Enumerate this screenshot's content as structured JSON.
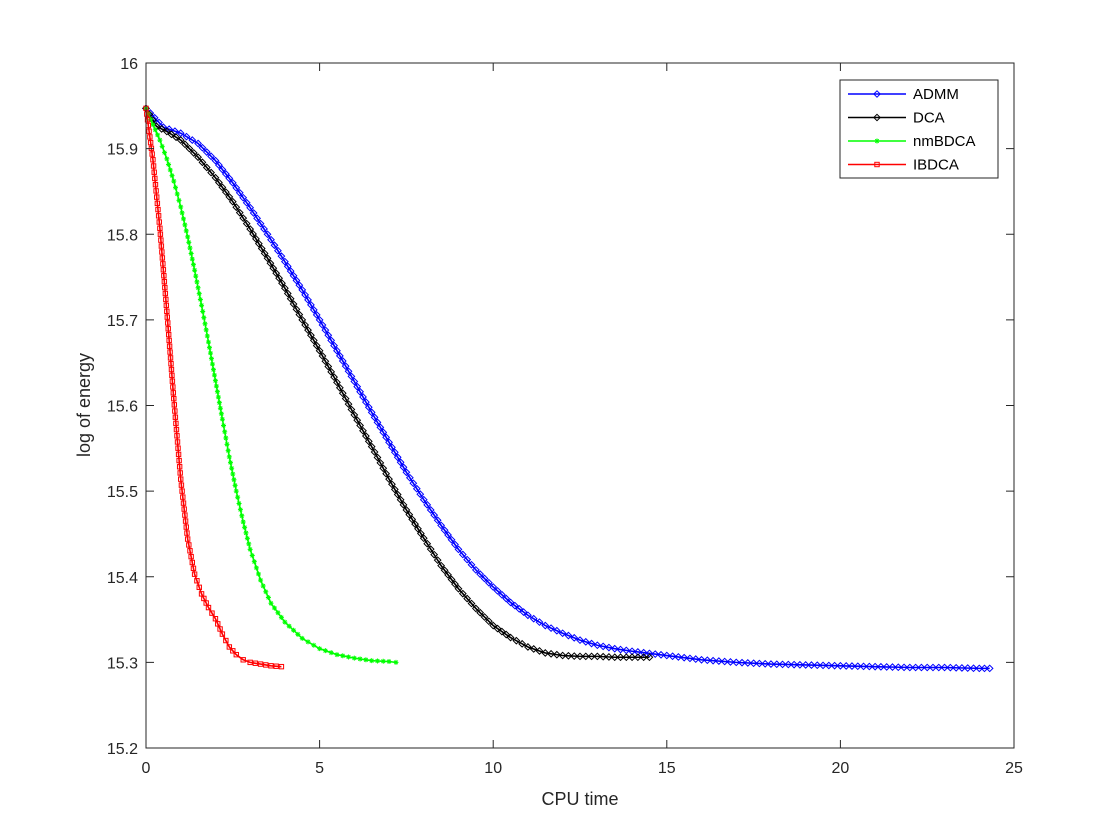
{
  "figure": {
    "background": "#ffffff"
  },
  "chart_data": {
    "type": "line",
    "title": "",
    "xlabel": "CPU time",
    "ylabel": "log of energy",
    "xlim": [
      0,
      25
    ],
    "ylim": [
      15.2,
      16
    ],
    "xticks": [
      "0",
      "5",
      "10",
      "15",
      "20",
      "25"
    ],
    "yticks": [
      "15.2",
      "15.3",
      "15.4",
      "15.5",
      "15.6",
      "15.7",
      "15.8",
      "15.9",
      "16"
    ],
    "grid": false,
    "legend_position": "top-right",
    "series": [
      {
        "name": "ADMM",
        "color": "#0000ff",
        "marker": "diamond",
        "x": [
          0,
          0.5,
          1.0,
          1.5,
          2.0,
          2.5,
          3.0,
          3.5,
          4.0,
          4.5,
          5.0,
          5.5,
          6.0,
          6.5,
          7.0,
          7.5,
          8.0,
          8.5,
          9.0,
          9.5,
          10.0,
          10.5,
          11.0,
          11.5,
          12.0,
          12.5,
          13.0,
          13.5,
          14.0,
          15.0,
          16.0,
          17.0,
          18.0,
          19.0,
          20.0,
          21.0,
          22.0,
          23.0,
          24.0,
          24.3
        ],
        "y": [
          15.947,
          15.925,
          15.918,
          15.906,
          15.886,
          15.86,
          15.831,
          15.8,
          15.768,
          15.735,
          15.7,
          15.664,
          15.628,
          15.592,
          15.557,
          15.522,
          15.49,
          15.46,
          15.432,
          15.408,
          15.388,
          15.37,
          15.355,
          15.343,
          15.334,
          15.326,
          15.32,
          15.316,
          15.313,
          15.308,
          15.303,
          15.3,
          15.298,
          15.297,
          15.296,
          15.295,
          15.294,
          15.294,
          15.293,
          15.293
        ]
      },
      {
        "name": "DCA",
        "color": "#000000",
        "marker": "diamond",
        "x": [
          0,
          0.3,
          0.6,
          1.0,
          1.5,
          2.0,
          2.5,
          3.0,
          3.5,
          4.0,
          4.5,
          5.0,
          5.5,
          6.0,
          6.5,
          7.0,
          7.5,
          8.0,
          8.5,
          9.0,
          9.5,
          10.0,
          10.5,
          11.0,
          11.5,
          12.0,
          12.5,
          13.0,
          13.5,
          14.0,
          14.5
        ],
        "y": [
          15.947,
          15.926,
          15.92,
          15.91,
          15.89,
          15.866,
          15.838,
          15.806,
          15.772,
          15.737,
          15.7,
          15.664,
          15.627,
          15.589,
          15.552,
          15.514,
          15.478,
          15.445,
          15.413,
          15.386,
          15.363,
          15.343,
          15.329,
          15.318,
          15.311,
          15.308,
          15.307,
          15.307,
          15.306,
          15.306,
          15.306
        ]
      },
      {
        "name": "nmBDCA",
        "color": "#00ff00",
        "marker": "star",
        "x": [
          0,
          0.2,
          0.4,
          0.6,
          0.8,
          1.0,
          1.2,
          1.4,
          1.6,
          1.8,
          2.0,
          2.2,
          2.4,
          2.6,
          2.8,
          3.0,
          3.3,
          3.6,
          4.0,
          4.5,
          5.0,
          5.5,
          6.0,
          6.5,
          7.0,
          7.2
        ],
        "y": [
          15.947,
          15.928,
          15.91,
          15.888,
          15.862,
          15.832,
          15.797,
          15.758,
          15.717,
          15.674,
          15.629,
          15.584,
          15.54,
          15.5,
          15.464,
          15.432,
          15.396,
          15.369,
          15.347,
          15.328,
          15.316,
          15.309,
          15.305,
          15.302,
          15.301,
          15.3
        ]
      },
      {
        "name": "IBDCA",
        "color": "#ff0000",
        "marker": "square",
        "x": [
          0,
          0.2,
          0.4,
          0.6,
          0.8,
          1.0,
          1.2,
          1.4,
          1.6,
          1.8,
          2.0,
          2.2,
          2.4,
          2.6,
          2.8,
          3.0,
          3.3,
          3.6,
          3.9
        ],
        "y": [
          15.947,
          15.887,
          15.807,
          15.71,
          15.608,
          15.514,
          15.444,
          15.403,
          15.38,
          15.364,
          15.351,
          15.333,
          15.318,
          15.309,
          15.303,
          15.3,
          15.298,
          15.296,
          15.295
        ]
      }
    ]
  }
}
